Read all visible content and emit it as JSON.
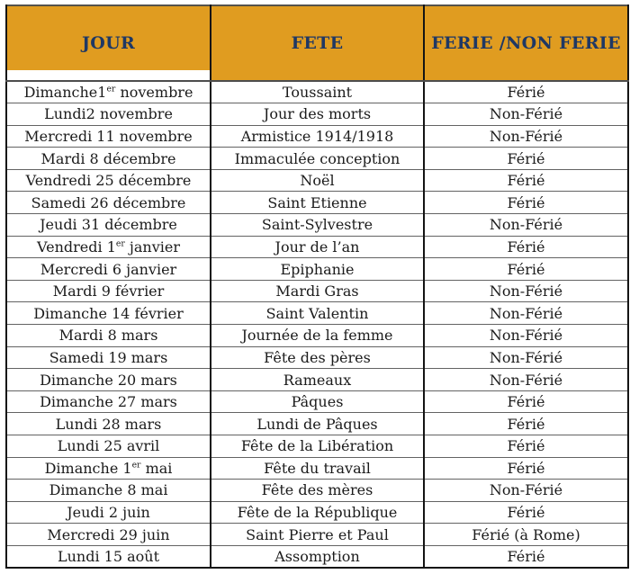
{
  "table": {
    "columns": [
      {
        "label": "JOUR"
      },
      {
        "label": "FETE"
      },
      {
        "label": "FERIE /NON FERIE"
      }
    ],
    "rows": [
      {
        "jour": "Dimanche1er novembre",
        "fete": "Toussaint",
        "ferie": "Férié"
      },
      {
        "jour": "Lundi2 novembre",
        "fete": "Jour des morts",
        "ferie": "Non-Férié"
      },
      {
        "jour": "Mercredi 11 novembre",
        "fete": "Armistice 1914/1918",
        "ferie": "Non-Férié"
      },
      {
        "jour": "Mardi 8 décembre",
        "fete": "Immaculée conception",
        "ferie": "Férié"
      },
      {
        "jour": "Vendredi 25 décembre",
        "fete": "Noël",
        "ferie": "Férié"
      },
      {
        "jour": "Samedi 26 décembre",
        "fete": "Saint Etienne",
        "ferie": "Férié"
      },
      {
        "jour": "Jeudi 31 décembre",
        "fete": "Saint-Sylvestre",
        "ferie": "Non-Férié"
      },
      {
        "jour": "Vendredi 1er janvier",
        "fete": "Jour de l’an",
        "ferie": "Férié"
      },
      {
        "jour": "Mercredi 6 janvier",
        "fete": "Epiphanie",
        "ferie": "Férié"
      },
      {
        "jour": "Mardi 9 février",
        "fete": "Mardi Gras",
        "ferie": "Non-Férié"
      },
      {
        "jour": "Dimanche 14 février",
        "fete": "Saint Valentin",
        "ferie": "Non-Férié"
      },
      {
        "jour": "Mardi 8 mars",
        "fete": "Journée de la femme",
        "ferie": "Non-Férié"
      },
      {
        "jour": "Samedi 19 mars",
        "fete": "Fête des pères",
        "ferie": "Non-Férié"
      },
      {
        "jour": "Dimanche 20 mars",
        "fete": "Rameaux",
        "ferie": "Non-Férié"
      },
      {
        "jour": "Dimanche 27 mars",
        "fete": "Pâques",
        "ferie": "Férié"
      },
      {
        "jour": "Lundi 28 mars",
        "fete": "Lundi de Pâques",
        "ferie": "Férié"
      },
      {
        "jour": "Lundi 25 avril",
        "fete": "Fête de la Libération",
        "ferie": "Férié"
      },
      {
        "jour": "Dimanche 1er mai",
        "fete": "Fête du travail",
        "ferie": "Férié"
      },
      {
        "jour": "Dimanche 8 mai",
        "fete": "Fête des mères",
        "ferie": "Non-Férié"
      },
      {
        "jour": "Jeudi 2 juin",
        "fete": "Fête de la République",
        "ferie": "Férié"
      },
      {
        "jour": "Mercredi 29 juin",
        "fete": "Saint Pierre et Paul",
        "ferie": "Férié (à Rome)"
      },
      {
        "jour": "Lundi 15 août",
        "fete": "Assomption",
        "ferie": "Férié"
      }
    ]
  },
  "colors": {
    "header_background": "#e09c20",
    "header_text": "#1f3864",
    "body_text": "#1b1b1b",
    "grid_border": "#141414"
  }
}
